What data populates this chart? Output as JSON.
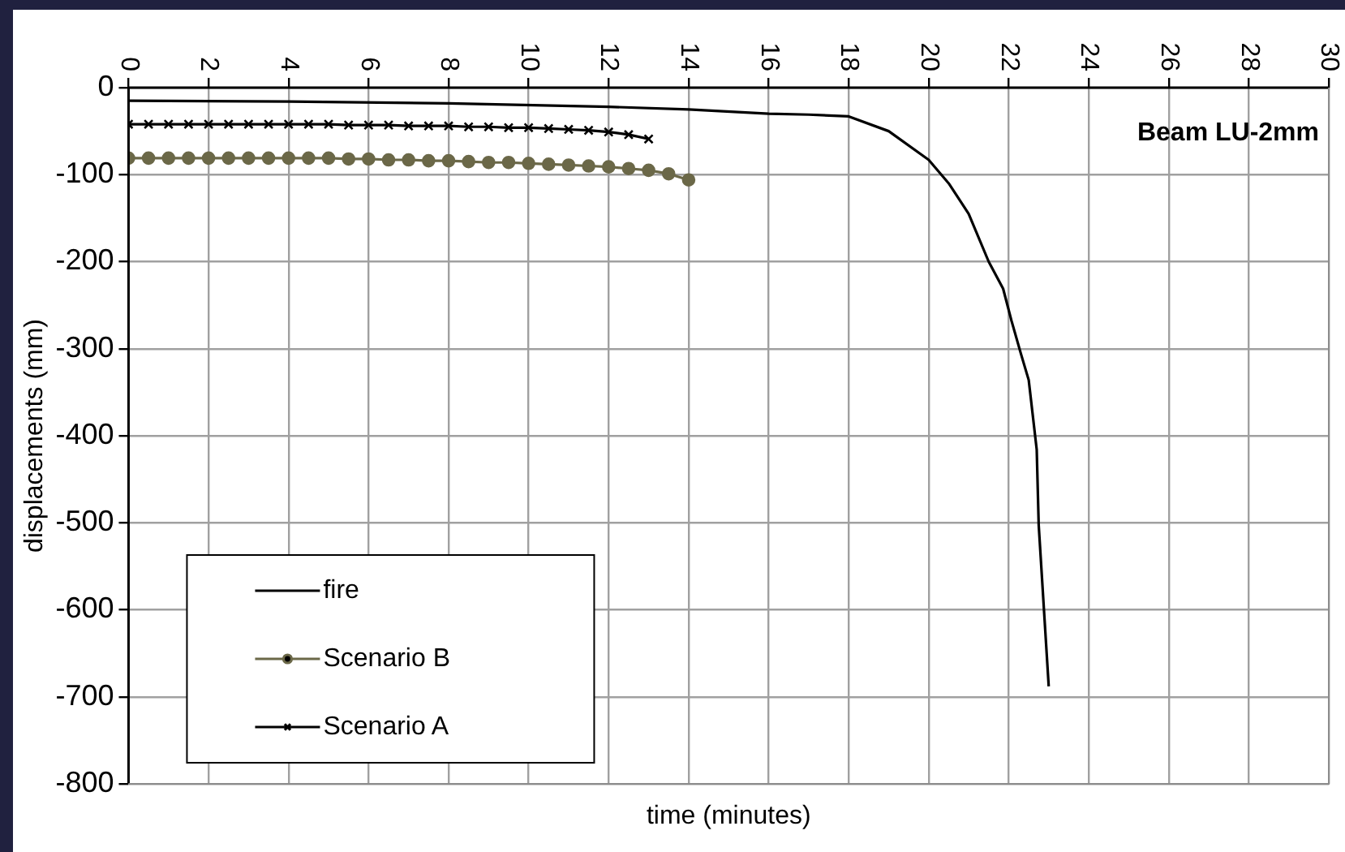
{
  "chart_data": {
    "type": "line",
    "xlabel": "time (minutes)",
    "ylabel": "displacements (mm)",
    "annotations": [
      "Beam LU-2mm"
    ],
    "xlim": [
      0,
      30
    ],
    "xticks": [
      0,
      2,
      4,
      6,
      8,
      10,
      12,
      14,
      16,
      18,
      20,
      22,
      24,
      26,
      28,
      30
    ],
    "ylim": [
      -800,
      0
    ],
    "yticks": [
      -800,
      -700,
      -600,
      -500,
      -400,
      -300,
      -200,
      -100,
      0
    ],
    "grid": true,
    "legend": "bottom left",
    "line_style": "solid",
    "series": [
      {
        "name": "fire",
        "color": "#000000",
        "marker": "none",
        "x": [
          0,
          4,
          8,
          12,
          14,
          16,
          17,
          18,
          19,
          20,
          20.5,
          21,
          21.5,
          21.86,
          22.07,
          22.3,
          22.5,
          22.7,
          22.75,
          23.0
        ],
        "values": [
          -15,
          -16,
          -18,
          -22,
          -25,
          -30,
          -31,
          -33,
          -50,
          -83,
          -110,
          -145,
          -200,
          -231,
          -268,
          -305,
          -336,
          -416,
          -503,
          -688
        ]
      },
      {
        "name": "Scenario B",
        "color": "#6b6848",
        "marker": "circle",
        "x": [
          0,
          0.5,
          1,
          1.5,
          2,
          2.5,
          3,
          3.5,
          4,
          4.5,
          5,
          5.5,
          6,
          6.5,
          7,
          7.5,
          8,
          8.5,
          9,
          9.5,
          10,
          10.5,
          11,
          11.5,
          12,
          12.5,
          13,
          13.5,
          14
        ],
        "values": [
          -81,
          -81,
          -81,
          -81,
          -81,
          -81,
          -81,
          -81,
          -81,
          -81,
          -81,
          -82,
          -82,
          -83,
          -83,
          -84,
          -84,
          -85,
          -86,
          -86,
          -87,
          -88,
          -89,
          -90,
          -91,
          -93,
          -95,
          -99,
          -106
        ]
      },
      {
        "name": "Scenario A",
        "color": "#000000",
        "marker": "cross",
        "x": [
          0,
          0.5,
          1,
          1.5,
          2,
          2.5,
          3,
          3.5,
          4,
          4.5,
          5,
          5.5,
          6,
          6.5,
          7,
          7.5,
          8,
          8.5,
          9,
          9.5,
          10,
          10.5,
          11,
          11.5,
          12,
          12.5,
          13
        ],
        "values": [
          -42,
          -42,
          -42,
          -42,
          -42,
          -42,
          -42,
          -42,
          -42,
          -42,
          -42,
          -43,
          -43,
          -43,
          -44,
          -44,
          -44,
          -45,
          -45,
          -46,
          -46,
          -47,
          -48,
          -49,
          -51,
          -54,
          -59
        ]
      }
    ]
  }
}
